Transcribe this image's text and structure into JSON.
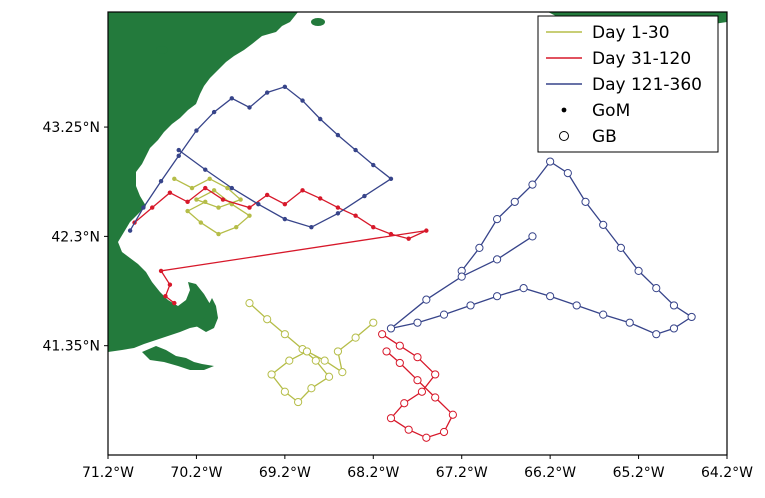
{
  "colors": {
    "land": "#237a3c",
    "day_1_30": "#b5bd48",
    "day_31_120": "#d7182a",
    "day_121_360": "#37448a",
    "frame": "#000000"
  },
  "axes": {
    "x_ticks": [
      "71.2°W",
      "70.2°W",
      "69.2°W",
      "68.2°W",
      "67.2°W",
      "66.2°W",
      "65.2°W",
      "64.2°W"
    ],
    "y_ticks": [
      "43.25°N",
      "42.3°N",
      "41.35°N"
    ]
  },
  "legend": {
    "entries": [
      {
        "label": "Day 1-30",
        "kind": "line",
        "color": "#b5bd48"
      },
      {
        "label": "Day 31-120",
        "kind": "line",
        "color": "#d7182a"
      },
      {
        "label": "Day 121-360",
        "kind": "line",
        "color": "#37448a"
      },
      {
        "label": "GoM",
        "kind": "dot"
      },
      {
        "label": "GB",
        "kind": "circle"
      }
    ]
  },
  "chart_data": {
    "type": "scatter",
    "xlim": [
      -71.2,
      -64.2
    ],
    "ylim": [
      40.4,
      44.25
    ],
    "xlabel": "",
    "ylabel": "",
    "grid": false,
    "legend_position": "top-right",
    "series": [
      {
        "name": "Day 1-30",
        "group": "GoM",
        "x": [
          -70.45,
          -70.25,
          -70.05,
          -69.85,
          -69.7,
          -69.95,
          -70.2,
          -70.0,
          -69.8,
          -69.6,
          -69.75,
          -69.95,
          -70.15,
          -70.3,
          -70.1
        ],
        "y": [
          42.8,
          42.72,
          42.8,
          42.72,
          42.62,
          42.55,
          42.62,
          42.7,
          42.58,
          42.48,
          42.38,
          42.32,
          42.42,
          42.52,
          42.6
        ]
      },
      {
        "name": "Day 1-30",
        "group": "GB",
        "x": [
          -69.6,
          -69.4,
          -69.2,
          -69.0,
          -68.85,
          -68.7,
          -68.9,
          -69.05,
          -69.2,
          -69.35,
          -69.15,
          -68.95,
          -68.75,
          -68.55,
          -68.6,
          -68.4,
          -68.2
        ],
        "y": [
          41.72,
          41.58,
          41.45,
          41.32,
          41.22,
          41.08,
          40.98,
          40.86,
          40.95,
          41.1,
          41.22,
          41.3,
          41.22,
          41.12,
          41.3,
          41.42,
          41.55
        ]
      },
      {
        "name": "Day 31-120",
        "group": "GoM",
        "x": [
          -70.9,
          -70.7,
          -70.5,
          -70.3,
          -70.1,
          -69.9,
          -69.6,
          -69.4,
          -69.2,
          -69.0,
          -68.8,
          -68.6,
          -68.4,
          -68.2,
          -68.0,
          -67.8,
          -67.6,
          -70.6,
          -70.5,
          -70.55,
          -70.45
        ],
        "y": [
          42.42,
          42.55,
          42.68,
          42.6,
          42.72,
          42.62,
          42.55,
          42.66,
          42.58,
          42.7,
          42.63,
          42.55,
          42.48,
          42.38,
          42.32,
          42.28,
          42.35,
          42.0,
          41.88,
          41.78,
          41.72
        ]
      },
      {
        "name": "Day 31-120",
        "group": "GB",
        "x": [
          -68.1,
          -67.9,
          -67.7,
          -67.5,
          -67.65,
          -67.85,
          -68.0,
          -67.8,
          -67.6,
          -67.4,
          -67.3,
          -67.5,
          -67.7,
          -67.9,
          -68.05
        ],
        "y": [
          41.45,
          41.35,
          41.25,
          41.1,
          40.95,
          40.85,
          40.72,
          40.62,
          40.55,
          40.6,
          40.75,
          40.9,
          41.05,
          41.2,
          41.3
        ]
      },
      {
        "name": "Day 121-360",
        "group": "GoM",
        "x": [
          -70.95,
          -70.8,
          -70.6,
          -70.4,
          -70.2,
          -70.0,
          -69.8,
          -69.6,
          -69.4,
          -69.2,
          -69.0,
          -68.8,
          -68.6,
          -68.4,
          -68.2,
          -68.0,
          -68.3,
          -68.6,
          -68.9,
          -69.2,
          -69.5,
          -69.8,
          -70.1,
          -70.4
        ],
        "y": [
          42.35,
          42.55,
          42.78,
          43.0,
          43.22,
          43.38,
          43.5,
          43.42,
          43.55,
          43.6,
          43.48,
          43.32,
          43.18,
          43.05,
          42.92,
          42.8,
          42.65,
          42.5,
          42.38,
          42.45,
          42.58,
          42.72,
          42.88,
          43.05
        ]
      },
      {
        "name": "Day 121-360",
        "group": "GB",
        "x": [
          -67.2,
          -67.0,
          -66.8,
          -66.6,
          -66.4,
          -66.2,
          -66.0,
          -65.8,
          -65.6,
          -65.4,
          -65.2,
          -65.0,
          -64.8,
          -64.6,
          -64.8,
          -65.0,
          -65.3,
          -65.6,
          -65.9,
          -66.2,
          -66.5,
          -66.8,
          -67.1,
          -67.4,
          -67.7,
          -68.0,
          -67.6,
          -67.2,
          -66.8,
          -66.4
        ],
        "y": [
          42.0,
          42.2,
          42.45,
          42.6,
          42.75,
          42.95,
          42.85,
          42.6,
          42.4,
          42.2,
          42.0,
          41.85,
          41.7,
          41.6,
          41.5,
          41.45,
          41.55,
          41.62,
          41.7,
          41.78,
          41.85,
          41.78,
          41.7,
          41.62,
          41.55,
          41.5,
          41.75,
          41.95,
          42.1,
          42.3
        ]
      }
    ]
  }
}
